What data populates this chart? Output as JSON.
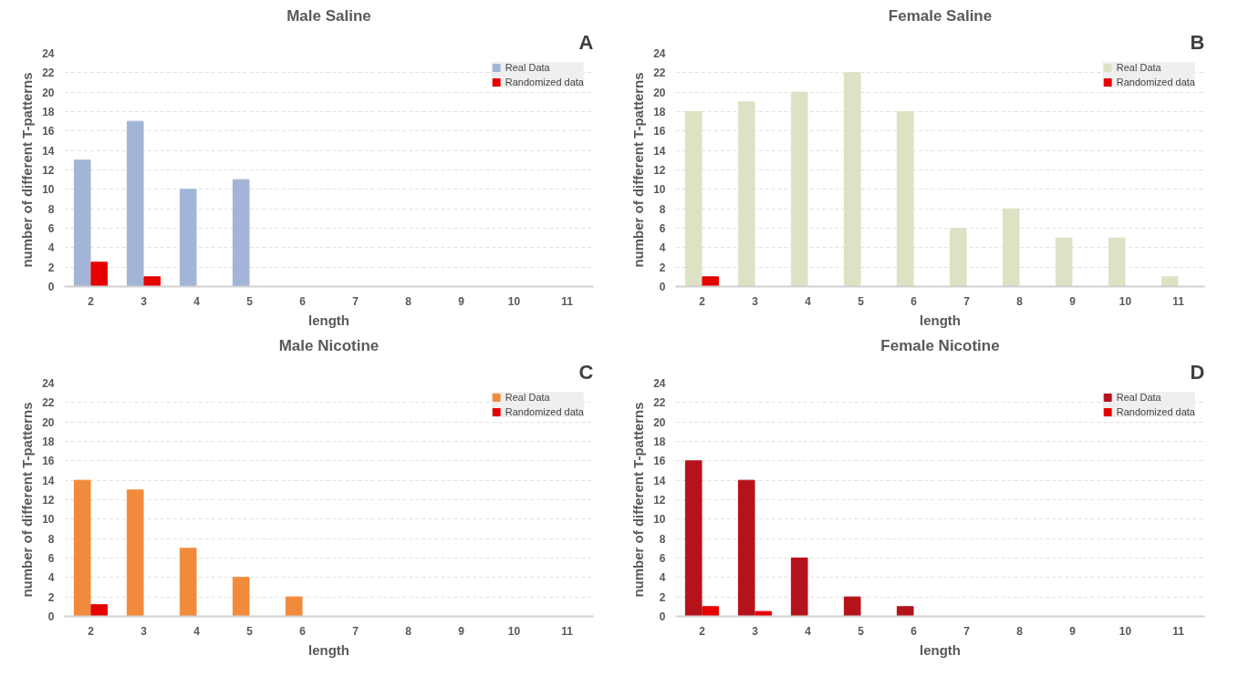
{
  "chart_data": [
    {
      "type": "bar",
      "title": "Male Saline",
      "xlabel": "length",
      "ylabel": "number of different T-patterns",
      "annotations": [
        "A"
      ],
      "categories": [
        "2",
        "3",
        "4",
        "5",
        "6",
        "7",
        "8",
        "9",
        "10",
        "11"
      ],
      "ylim": [
        0,
        24
      ],
      "yticks": [
        0,
        2,
        4,
        6,
        8,
        10,
        12,
        14,
        16,
        18,
        20,
        22,
        24
      ],
      "grid": "y",
      "legend": "top right",
      "series": [
        {
          "name": "Real Data",
          "color": "#a3b5d6",
          "values": [
            13,
            17,
            10,
            11,
            0,
            0,
            0,
            0,
            0,
            0
          ]
        },
        {
          "name": "Randomized data",
          "color": "#e60000",
          "values": [
            2.5,
            1,
            0,
            0,
            0,
            0,
            0,
            0,
            0,
            0
          ]
        }
      ]
    },
    {
      "type": "bar",
      "title": "Female Saline",
      "xlabel": "length",
      "ylabel": "number of different T-patterns",
      "annotations": [
        "B"
      ],
      "categories": [
        "2",
        "3",
        "4",
        "5",
        "6",
        "7",
        "8",
        "9",
        "10",
        "11"
      ],
      "ylim": [
        0,
        24
      ],
      "yticks": [
        0,
        2,
        4,
        6,
        8,
        10,
        12,
        14,
        16,
        18,
        20,
        22,
        24
      ],
      "grid": "y",
      "legend": "top right",
      "series": [
        {
          "name": "Real Data",
          "color": "#dde2c4",
          "values": [
            18,
            19,
            20,
            22,
            18,
            6,
            8,
            5,
            5,
            1
          ]
        },
        {
          "name": "Randomized data",
          "color": "#e60000",
          "values": [
            1,
            0,
            0,
            0,
            0,
            0,
            0,
            0,
            0,
            0
          ]
        }
      ]
    },
    {
      "type": "bar",
      "title": "Male Nicotine",
      "xlabel": "length",
      "ylabel": "number of different T-patterns",
      "annotations": [
        "C"
      ],
      "categories": [
        "2",
        "3",
        "4",
        "5",
        "6",
        "7",
        "8",
        "9",
        "10",
        "11"
      ],
      "ylim": [
        0,
        24
      ],
      "yticks": [
        0,
        2,
        4,
        6,
        8,
        10,
        12,
        14,
        16,
        18,
        20,
        22,
        24
      ],
      "grid": "y",
      "legend": "top right",
      "series": [
        {
          "name": "Real Data",
          "color": "#f28a3c",
          "values": [
            14,
            13,
            7,
            4,
            2,
            0,
            0,
            0,
            0,
            0
          ]
        },
        {
          "name": "Randomized data",
          "color": "#e60000",
          "values": [
            1.2,
            0,
            0,
            0,
            0,
            0,
            0,
            0,
            0,
            0
          ]
        }
      ]
    },
    {
      "type": "bar",
      "title": "Female Nicotine",
      "xlabel": "length",
      "ylabel": "number of different T-patterns",
      "annotations": [
        "D"
      ],
      "categories": [
        "2",
        "3",
        "4",
        "5",
        "6",
        "7",
        "8",
        "9",
        "10",
        "11"
      ],
      "ylim": [
        0,
        24
      ],
      "yticks": [
        0,
        2,
        4,
        6,
        8,
        10,
        12,
        14,
        16,
        18,
        20,
        22,
        24
      ],
      "grid": "y",
      "legend": "top right",
      "series": [
        {
          "name": "Real Data",
          "color": "#b5121b",
          "values": [
            16,
            14,
            6,
            2,
            1,
            0,
            0,
            0,
            0,
            0
          ]
        },
        {
          "name": "Randomized data",
          "color": "#e60000",
          "values": [
            1,
            0.5,
            0,
            0,
            0,
            0,
            0,
            0,
            0,
            0
          ]
        }
      ]
    }
  ]
}
